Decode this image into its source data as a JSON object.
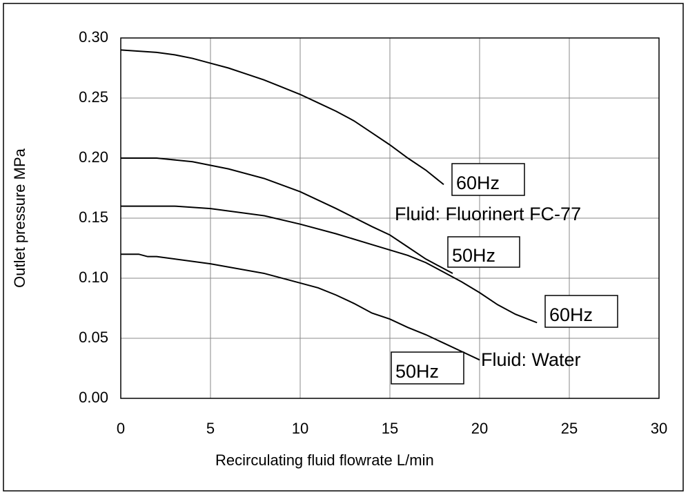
{
  "chart_data": {
    "type": "line",
    "xlabel": "Recirculating fluid flowrate  L/min",
    "ylabel": "Outlet pressure  MPa",
    "xlim": [
      0,
      30
    ],
    "ylim": [
      0,
      0.3
    ],
    "xticks": [
      0,
      5,
      10,
      15,
      20,
      25,
      30
    ],
    "yticks": [
      {
        "value": 0,
        "label": "0.00"
      },
      {
        "value": 0.05,
        "label": "0.05"
      },
      {
        "value": 0.1,
        "label": "0.10"
      },
      {
        "value": 0.15,
        "label": "0.15"
      },
      {
        "value": 0.2,
        "label": "0.20"
      },
      {
        "value": 0.25,
        "label": "0.25"
      },
      {
        "value": 0.3,
        "label": "0.30"
      }
    ],
    "grid": true,
    "series": [
      {
        "name": "60Hz",
        "color": "#000000",
        "x": [
          0,
          1,
          2,
          3,
          4,
          5,
          6,
          7,
          8,
          9,
          10,
          11,
          12,
          13,
          14,
          15,
          16,
          17,
          18
        ],
        "y": [
          0.29,
          0.289,
          0.288,
          0.286,
          0.283,
          0.279,
          0.275,
          0.27,
          0.265,
          0.259,
          0.253,
          0.246,
          0.239,
          0.231,
          0.221,
          0.211,
          0.2,
          0.19,
          0.178
        ]
      },
      {
        "name": "50Hz",
        "color": "#000000",
        "x": [
          0,
          2,
          4,
          6,
          8,
          10,
          12,
          14,
          15,
          16,
          17,
          18.5
        ],
        "y": [
          0.2,
          0.2,
          0.197,
          0.191,
          0.183,
          0.172,
          0.158,
          0.143,
          0.136,
          0.126,
          0.116,
          0.104
        ]
      },
      {
        "name": "60Hz",
        "color": "#000000",
        "x": [
          0,
          3,
          5,
          8,
          10,
          12,
          14,
          16,
          17,
          18,
          19,
          20,
          21,
          22,
          23.2
        ],
        "y": [
          0.16,
          0.16,
          0.158,
          0.152,
          0.145,
          0.137,
          0.128,
          0.119,
          0.113,
          0.105,
          0.097,
          0.088,
          0.078,
          0.07,
          0.063
        ]
      },
      {
        "name": "50Hz",
        "color": "#000000",
        "x": [
          0,
          1,
          1.5,
          2,
          5,
          8,
          10,
          11,
          12,
          13,
          14,
          15,
          16,
          17,
          18,
          19,
          20
        ],
        "y": [
          0.12,
          0.12,
          0.118,
          0.118,
          0.112,
          0.104,
          0.096,
          0.092,
          0.086,
          0.079,
          0.071,
          0.066,
          0.059,
          0.053,
          0.046,
          0.039,
          0.032
        ]
      }
    ],
    "annotations": [
      "Fluid: Fluorinert FC-77",
      "Fluid: Water"
    ]
  }
}
